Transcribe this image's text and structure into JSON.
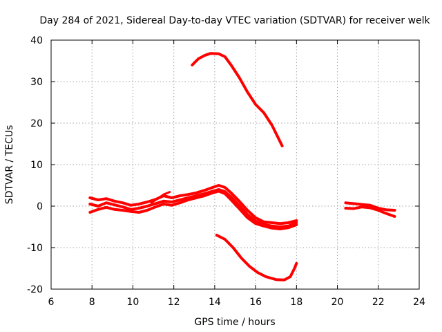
{
  "chart_data": {
    "type": "line",
    "title": "Day 284 of 2021, Sidereal Day-to-day VTEC variation (SDTVAR) for receiver welk",
    "xlabel": "GPS time / hours",
    "ylabel": "SDTVAR / TECUs",
    "xlim": [
      6,
      24
    ],
    "ylim": [
      -20,
      40
    ],
    "xticks": [
      6,
      8,
      10,
      12,
      14,
      16,
      18,
      20,
      22,
      24
    ],
    "yticks": [
      -20,
      -10,
      0,
      10,
      20,
      30,
      40
    ],
    "grid": true,
    "color": "#ff0000",
    "series": [
      {
        "name": "track-high-arc",
        "width": 4,
        "points": [
          [
            12.9,
            34
          ],
          [
            13.2,
            35.5
          ],
          [
            13.5,
            36.3
          ],
          [
            13.8,
            36.8
          ],
          [
            14.2,
            36.7
          ],
          [
            14.5,
            36
          ],
          [
            14.8,
            34
          ],
          [
            15.2,
            31
          ],
          [
            15.6,
            27.5
          ],
          [
            16,
            24.5
          ],
          [
            16.4,
            22.5
          ],
          [
            16.8,
            19.5
          ],
          [
            17.1,
            16.5
          ],
          [
            17.3,
            14.5
          ]
        ]
      },
      {
        "name": "track-main-upper",
        "width": 4,
        "points": [
          [
            7.9,
            2
          ],
          [
            8.3,
            1.5
          ],
          [
            8.7,
            1.8
          ],
          [
            9.1,
            1.2
          ],
          [
            9.5,
            0.8
          ],
          [
            9.9,
            0.2
          ],
          [
            10.3,
            0.5
          ],
          [
            10.7,
            1
          ],
          [
            11.1,
            1.6
          ],
          [
            11.5,
            2.5
          ],
          [
            11.9,
            2
          ],
          [
            12.3,
            2.5
          ],
          [
            12.7,
            2.8
          ],
          [
            13.1,
            3.2
          ],
          [
            13.5,
            3.8
          ],
          [
            13.9,
            4.5
          ],
          [
            14.2,
            5
          ],
          [
            14.5,
            4.5
          ],
          [
            14.8,
            3.2
          ],
          [
            15.2,
            1.2
          ],
          [
            15.6,
            -1
          ],
          [
            16,
            -2.8
          ],
          [
            16.4,
            -3.8
          ],
          [
            16.8,
            -4
          ],
          [
            17.2,
            -4.2
          ],
          [
            17.6,
            -4
          ],
          [
            18,
            -3.5
          ]
        ]
      },
      {
        "name": "track-main-middle",
        "width": 4,
        "points": [
          [
            7.9,
            0.5
          ],
          [
            8.3,
            0
          ],
          [
            8.7,
            0.8
          ],
          [
            9.1,
            0.3
          ],
          [
            9.5,
            -0.2
          ],
          [
            9.9,
            -0.8
          ],
          [
            10.3,
            -0.5
          ],
          [
            10.7,
            0
          ],
          [
            11.1,
            0.6
          ],
          [
            11.5,
            1.2
          ],
          [
            11.9,
            1
          ],
          [
            12.3,
            1.5
          ],
          [
            12.7,
            2
          ],
          [
            13.1,
            2.5
          ],
          [
            13.5,
            3
          ],
          [
            13.9,
            3.6
          ],
          [
            14.2,
            4
          ],
          [
            14.5,
            3.5
          ],
          [
            14.8,
            2.2
          ],
          [
            15.2,
            0.2
          ],
          [
            15.6,
            -2
          ],
          [
            16,
            -3.6
          ],
          [
            16.4,
            -4.4
          ],
          [
            16.8,
            -4.8
          ],
          [
            17.2,
            -5
          ],
          [
            17.6,
            -4.8
          ],
          [
            18,
            -4
          ]
        ]
      },
      {
        "name": "track-main-lower",
        "width": 4,
        "points": [
          [
            7.9,
            -1.5
          ],
          [
            8.3,
            -0.8
          ],
          [
            8.7,
            -0.3
          ],
          [
            9.1,
            -0.8
          ],
          [
            9.5,
            -1
          ],
          [
            9.9,
            -1.3
          ],
          [
            10.3,
            -1.5
          ],
          [
            10.7,
            -1
          ],
          [
            11.1,
            -0.2
          ],
          [
            11.5,
            0.5
          ],
          [
            11.9,
            0.2
          ],
          [
            12.3,
            0.8
          ],
          [
            12.7,
            1.5
          ],
          [
            13.1,
            2
          ],
          [
            13.5,
            2.5
          ],
          [
            13.9,
            3.2
          ],
          [
            14.2,
            3.6
          ],
          [
            14.5,
            3
          ],
          [
            14.8,
            1.5
          ],
          [
            15.2,
            -0.6
          ],
          [
            15.6,
            -2.8
          ],
          [
            16,
            -4.2
          ],
          [
            16.4,
            -4.8
          ],
          [
            16.8,
            -5.3
          ],
          [
            17.2,
            -5.5
          ],
          [
            17.6,
            -5.2
          ],
          [
            18,
            -4.5
          ]
        ]
      },
      {
        "name": "track-early-spike",
        "width": 3,
        "points": [
          [
            10.9,
            0.8
          ],
          [
            11.2,
            1.8
          ],
          [
            11.5,
            2.8
          ],
          [
            11.8,
            3.4
          ]
        ]
      },
      {
        "name": "track-low-arc",
        "width": 4,
        "points": [
          [
            14.1,
            -7
          ],
          [
            14.5,
            -8
          ],
          [
            14.9,
            -10
          ],
          [
            15.3,
            -12.5
          ],
          [
            15.7,
            -14.5
          ],
          [
            16.1,
            -16
          ],
          [
            16.5,
            -17
          ],
          [
            17,
            -17.7
          ],
          [
            17.4,
            -17.8
          ],
          [
            17.7,
            -17
          ],
          [
            17.9,
            -15
          ],
          [
            18,
            -13.8
          ]
        ]
      },
      {
        "name": "track-late-a",
        "width": 4,
        "points": [
          [
            20.4,
            0.8
          ],
          [
            20.8,
            0.6
          ],
          [
            21.2,
            0.4
          ],
          [
            21.6,
            0.2
          ],
          [
            22,
            -0.5
          ],
          [
            22.4,
            -0.9
          ],
          [
            22.8,
            -1
          ]
        ]
      },
      {
        "name": "track-late-b",
        "width": 4,
        "points": [
          [
            20.4,
            -0.5
          ],
          [
            20.8,
            -0.6
          ],
          [
            21.2,
            -0.2
          ],
          [
            21.6,
            -0.4
          ],
          [
            22,
            -1
          ],
          [
            22.4,
            -1.8
          ],
          [
            22.8,
            -2.5
          ]
        ]
      }
    ]
  }
}
